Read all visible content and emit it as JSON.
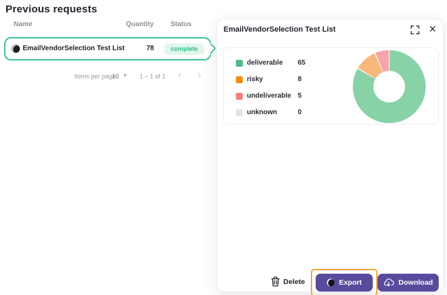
{
  "page": {
    "title": "Previous requests"
  },
  "table": {
    "columns": [
      "Name",
      "Quantity",
      "Status"
    ],
    "rows": [
      {
        "name": "EmailVendorSelection Test List",
        "quantity": "78",
        "status": "complete"
      }
    ]
  },
  "pagination": {
    "items_per_page_label": "Items per page:",
    "page_size": "10",
    "range_label": "1 – 1 of 1"
  },
  "panel": {
    "title": "EmailVendorSelection Test List",
    "actions": {
      "delete_label": "Delete",
      "export_label": "Export",
      "download_label": "Download"
    }
  },
  "icons": {
    "close_glyph": "✕",
    "caret_glyph": "▾",
    "prev_glyph": "‹",
    "next_glyph": "›"
  },
  "colors": {
    "accent_green": "#3ec78f",
    "badge_bg": "#e1f7ec",
    "badge_text": "#2dbd88",
    "button_purple": "#5a4a9e",
    "highlight_orange": "#f0a73c",
    "text_dark": "#23222d",
    "text_gray": "#8f8f99"
  },
  "chart_data": {
    "type": "pie",
    "title": "EmailVendorSelection Test List",
    "categories": [
      "deliverable",
      "risky",
      "undeliverable",
      "unknown"
    ],
    "values": [
      65,
      8,
      5,
      0
    ],
    "total": 78,
    "legend_colors": [
      "#4dbb86",
      "#f78c0e",
      "#f57e7e",
      "#e4e4e8"
    ],
    "slice_colors": [
      "#87d2a7",
      "#fab77c",
      "#f8a3ab",
      "#e4e4e8"
    ],
    "donut": true,
    "start_angle_deg": 0,
    "direction": "clockwise",
    "legend_position": "left"
  }
}
